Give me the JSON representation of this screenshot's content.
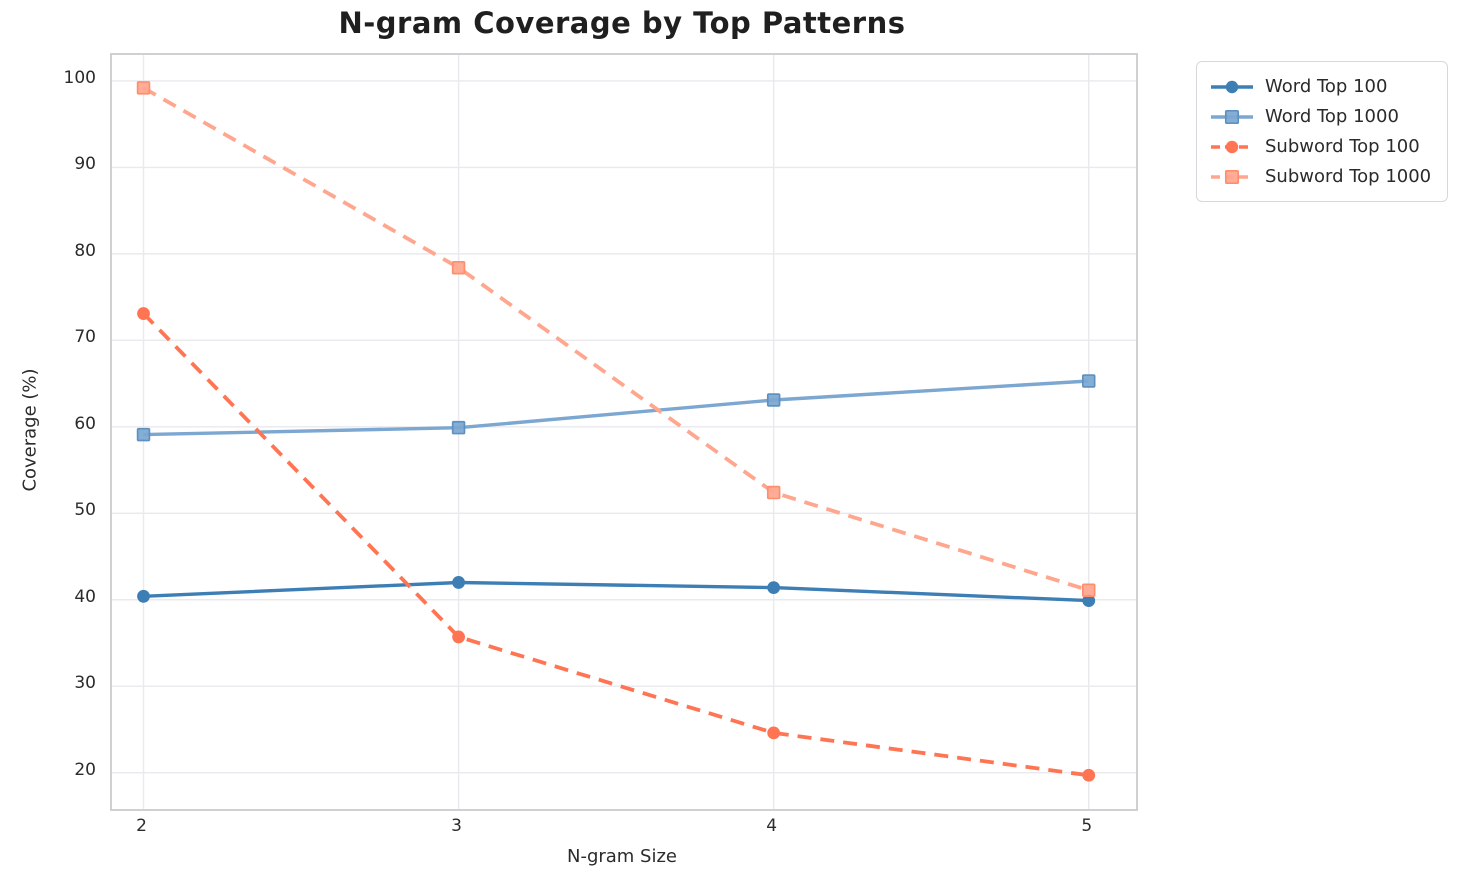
{
  "chart_data": {
    "type": "line",
    "title": "N-gram Coverage by Top Patterns",
    "xlabel": "N-gram Size",
    "ylabel": "Coverage (%)",
    "x": [
      2,
      3,
      4,
      5
    ],
    "xticks": [
      "2",
      "3",
      "4",
      "5"
    ],
    "yticks": [
      20,
      30,
      40,
      50,
      60,
      70,
      80,
      90,
      100
    ],
    "xlim": [
      1.9,
      5.15
    ],
    "ylim": [
      15.8,
      103.0
    ],
    "grid": true,
    "legend_position": "outside upper right",
    "series": [
      {
        "name": "Word Top 100",
        "color": "#3d7eb5",
        "edge": "#3d7eb5",
        "style": "solid",
        "marker": "circle",
        "values": [
          40.4,
          42.0,
          41.4,
          39.9
        ]
      },
      {
        "name": "Word Top 1000",
        "color": "#7ba7d1",
        "edge": "#5e91c0",
        "style": "solid",
        "marker": "square",
        "values": [
          59.1,
          59.9,
          63.1,
          65.3
        ]
      },
      {
        "name": "Subword Top 100",
        "color": "#ff7553",
        "edge": "#ff7553",
        "style": "dashed",
        "marker": "circle",
        "values": [
          73.1,
          35.7,
          24.6,
          19.7
        ]
      },
      {
        "name": "Subword Top 1000",
        "color": "#ffa68e",
        "edge": "#ff8e6e",
        "style": "dashed",
        "marker": "square",
        "values": [
          99.2,
          78.4,
          52.4,
          41.1
        ]
      }
    ],
    "colors": {
      "grid": "#e9e9ee",
      "spine": "#d0d0d3",
      "text": "#2b2b2b",
      "title": "#1f1f1f",
      "background": "#ffffff"
    }
  }
}
